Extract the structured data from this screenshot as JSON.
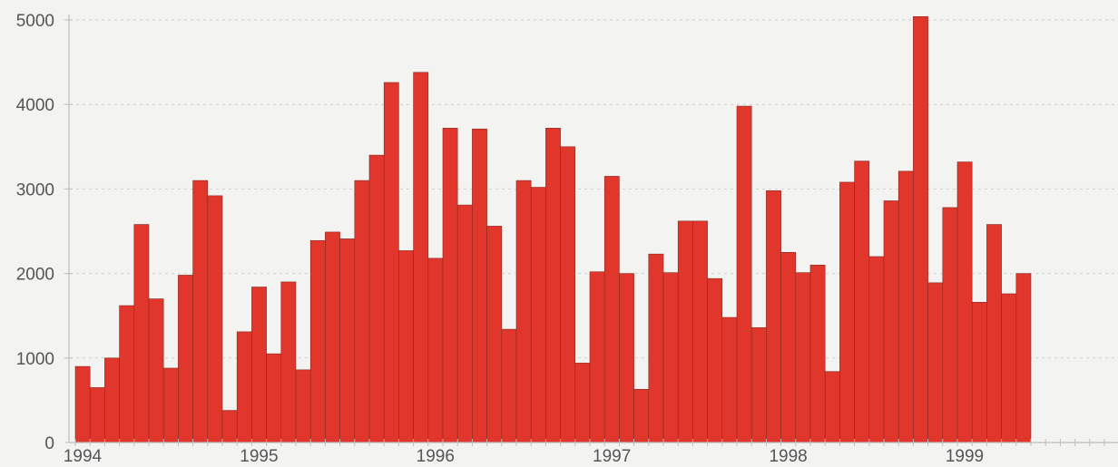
{
  "chart_data": {
    "type": "bar",
    "title": "",
    "xlabel": "",
    "ylabel": "",
    "ylim": [
      0,
      5000
    ],
    "yticks": [
      "0",
      "1000",
      "2000",
      "3000",
      "4000",
      "5000"
    ],
    "xticks": [
      "1994",
      "1995",
      "1996",
      "1997",
      "1998",
      "1999"
    ],
    "grid": true,
    "bar_color": "#e0362b",
    "x": [
      "1994-01",
      "1994-02",
      "1994-03",
      "1994-04",
      "1994-05",
      "1994-06",
      "1994-07",
      "1994-08",
      "1994-09",
      "1994-10",
      "1994-11",
      "1994-12",
      "1995-01",
      "1995-02",
      "1995-03",
      "1995-04",
      "1995-05",
      "1995-06",
      "1995-07",
      "1995-08",
      "1995-09",
      "1995-10",
      "1995-11",
      "1995-12",
      "1996-01",
      "1996-02",
      "1996-03",
      "1996-04",
      "1996-05",
      "1996-06",
      "1996-07",
      "1996-08",
      "1996-09",
      "1996-10",
      "1996-11",
      "1996-12",
      "1997-01",
      "1997-02",
      "1997-03",
      "1997-04",
      "1997-05",
      "1997-06",
      "1997-07",
      "1997-08",
      "1997-09",
      "1997-10",
      "1997-11",
      "1997-12",
      "1998-01",
      "1998-02",
      "1998-03",
      "1998-04",
      "1998-05",
      "1998-06",
      "1998-07",
      "1998-08",
      "1998-09",
      "1998-10",
      "1998-11",
      "1998-12",
      "1999-01",
      "1999-02",
      "1999-03",
      "1999-04",
      "1999-05"
    ],
    "values": [
      900,
      650,
      1000,
      1620,
      2580,
      1700,
      880,
      1980,
      3100,
      2920,
      380,
      1310,
      1840,
      1050,
      1900,
      860,
      2390,
      2490,
      2410,
      3100,
      3400,
      4260,
      2270,
      4380,
      2180,
      3720,
      2810,
      3710,
      2560,
      1340,
      3100,
      3020,
      3720,
      3500,
      940,
      2020,
      3150,
      2000,
      630,
      2230,
      2010,
      2620,
      2620,
      1940,
      1480,
      3980,
      1360,
      2980,
      2250,
      2010,
      2100,
      840,
      3080,
      3330,
      2200,
      2860,
      3210,
      5040,
      1890,
      2780,
      3320,
      1660,
      2580,
      1760,
      2000
    ]
  }
}
